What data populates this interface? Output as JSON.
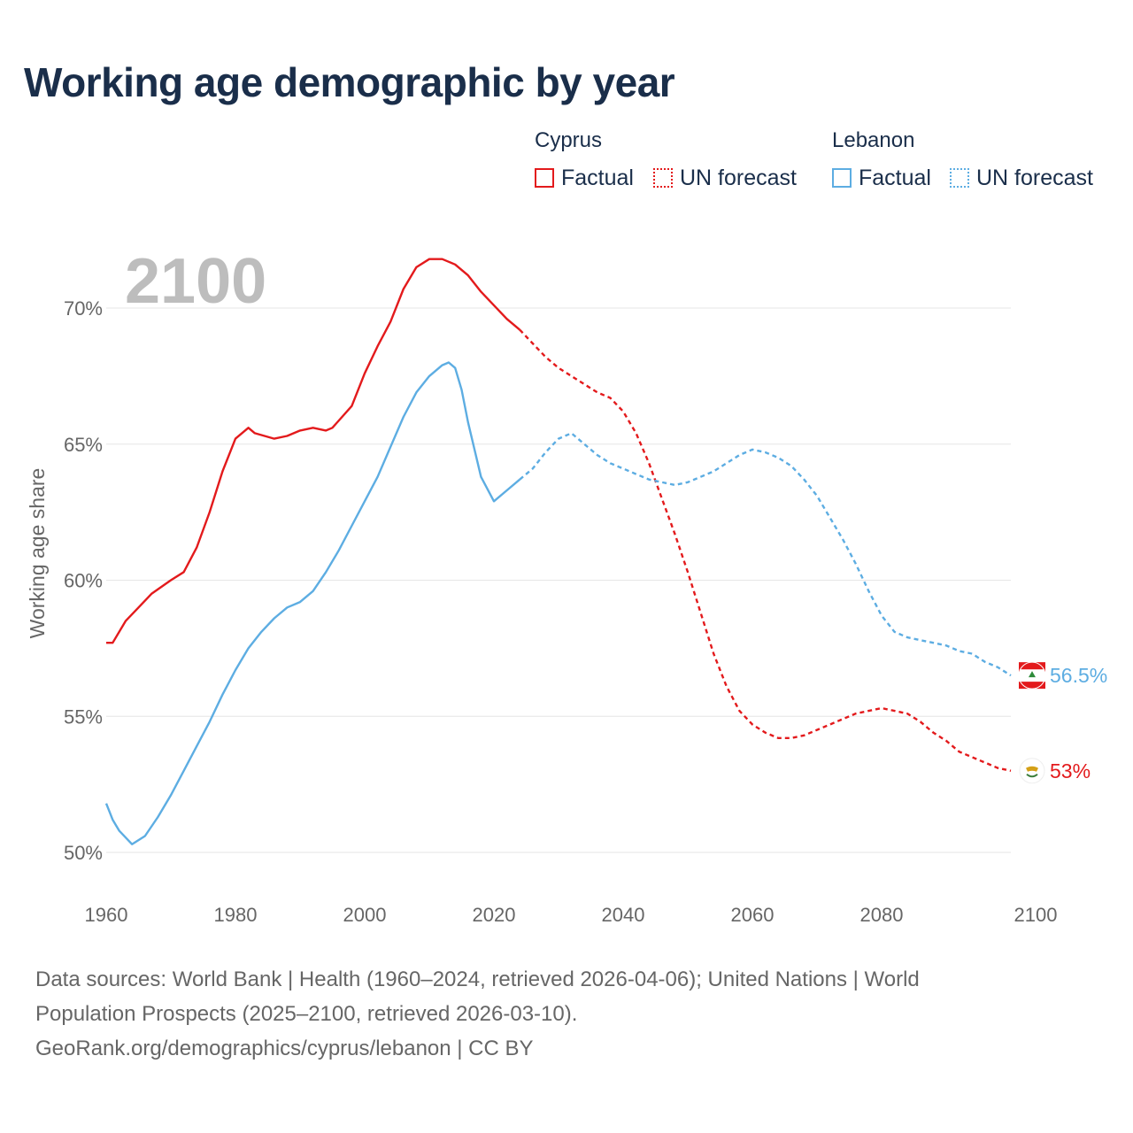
{
  "title": "Working age demographic by year",
  "legend": {
    "groups": [
      {
        "name": "Cyprus",
        "color": "#e31a1c",
        "factual_label": "Factual",
        "forecast_label": "UN forecast"
      },
      {
        "name": "Lebanon",
        "color": "#5dade2",
        "factual_label": "Factual",
        "forecast_label": "UN forecast"
      }
    ]
  },
  "sources": {
    "line1": "Data sources: World Bank | Health (1960–2024, retrieved 2026-04-06); United Nations | World",
    "line2": "Population Prospects (2025–2100, retrieved 2026-03-10).",
    "line3": "GeoRank.org/demographics/cyprus/lebanon | CC BY"
  },
  "chart_data": {
    "type": "line",
    "title": "Working age demographic by year",
    "current_year_label": "2100",
    "xlabel": "",
    "ylabel": "Working age share",
    "xlim": [
      1960,
      2100
    ],
    "ylim": [
      50,
      72
    ],
    "x_ticks": [
      1960,
      1980,
      2000,
      2020,
      2040,
      2060,
      2080,
      2100
    ],
    "y_ticks": [
      50,
      55,
      60,
      65,
      70
    ],
    "y_tick_labels": [
      "50%",
      "55%",
      "60%",
      "65%",
      "70%"
    ],
    "grid": true,
    "legend_position": "top-right",
    "factual_until": 2024,
    "series": [
      {
        "name": "Cyprus",
        "color": "#e31a1c",
        "end_label": "53%",
        "flag": "cyprus",
        "points": [
          [
            1960,
            57.7
          ],
          [
            1961,
            57.7
          ],
          [
            1963,
            58.5
          ],
          [
            1965,
            59.0
          ],
          [
            1967,
            59.5
          ],
          [
            1970,
            60.0
          ],
          [
            1972,
            60.3
          ],
          [
            1974,
            61.2
          ],
          [
            1976,
            62.5
          ],
          [
            1978,
            64.0
          ],
          [
            1980,
            65.2
          ],
          [
            1982,
            65.6
          ],
          [
            1983,
            65.4
          ],
          [
            1986,
            65.2
          ],
          [
            1988,
            65.3
          ],
          [
            1990,
            65.5
          ],
          [
            1992,
            65.6
          ],
          [
            1994,
            65.5
          ],
          [
            1995,
            65.6
          ],
          [
            1998,
            66.4
          ],
          [
            2000,
            67.6
          ],
          [
            2002,
            68.6
          ],
          [
            2004,
            69.5
          ],
          [
            2006,
            70.7
          ],
          [
            2008,
            71.5
          ],
          [
            2010,
            71.8
          ],
          [
            2012,
            71.8
          ],
          [
            2014,
            71.6
          ],
          [
            2016,
            71.2
          ],
          [
            2018,
            70.6
          ],
          [
            2020,
            70.1
          ],
          [
            2022,
            69.6
          ],
          [
            2024,
            69.2
          ],
          [
            2026,
            68.7
          ],
          [
            2028,
            68.2
          ],
          [
            2030,
            67.8
          ],
          [
            2032,
            67.5
          ],
          [
            2034,
            67.2
          ],
          [
            2036,
            66.9
          ],
          [
            2038,
            66.7
          ],
          [
            2040,
            66.2
          ],
          [
            2042,
            65.4
          ],
          [
            2044,
            64.3
          ],
          [
            2046,
            63.0
          ],
          [
            2048,
            61.7
          ],
          [
            2050,
            60.3
          ],
          [
            2052,
            58.8
          ],
          [
            2054,
            57.3
          ],
          [
            2056,
            56.1
          ],
          [
            2058,
            55.2
          ],
          [
            2060,
            54.7
          ],
          [
            2062,
            54.4
          ],
          [
            2064,
            54.2
          ],
          [
            2066,
            54.2
          ],
          [
            2068,
            54.3
          ],
          [
            2070,
            54.5
          ],
          [
            2072,
            54.7
          ],
          [
            2074,
            54.9
          ],
          [
            2076,
            55.1
          ],
          [
            2078,
            55.2
          ],
          [
            2080,
            55.3
          ],
          [
            2082,
            55.2
          ],
          [
            2084,
            55.1
          ],
          [
            2086,
            54.8
          ],
          [
            2088,
            54.4
          ],
          [
            2090,
            54.1
          ],
          [
            2092,
            53.7
          ],
          [
            2094,
            53.5
          ],
          [
            2096,
            53.3
          ],
          [
            2098,
            53.1
          ],
          [
            2100,
            53.0
          ]
        ]
      },
      {
        "name": "Lebanon",
        "color": "#5dade2",
        "end_label": "56.5%",
        "flag": "lebanon",
        "points": [
          [
            1960,
            51.8
          ],
          [
            1961,
            51.2
          ],
          [
            1962,
            50.8
          ],
          [
            1964,
            50.3
          ],
          [
            1966,
            50.6
          ],
          [
            1968,
            51.3
          ],
          [
            1970,
            52.1
          ],
          [
            1972,
            53.0
          ],
          [
            1974,
            53.9
          ],
          [
            1976,
            54.8
          ],
          [
            1978,
            55.8
          ],
          [
            1980,
            56.7
          ],
          [
            1982,
            57.5
          ],
          [
            1984,
            58.1
          ],
          [
            1986,
            58.6
          ],
          [
            1988,
            59.0
          ],
          [
            1990,
            59.2
          ],
          [
            1992,
            59.6
          ],
          [
            1994,
            60.3
          ],
          [
            1996,
            61.1
          ],
          [
            1998,
            62.0
          ],
          [
            2000,
            62.9
          ],
          [
            2002,
            63.8
          ],
          [
            2004,
            64.9
          ],
          [
            2006,
            66.0
          ],
          [
            2008,
            66.9
          ],
          [
            2010,
            67.5
          ],
          [
            2012,
            67.9
          ],
          [
            2013,
            68.0
          ],
          [
            2014,
            67.8
          ],
          [
            2015,
            67.0
          ],
          [
            2016,
            65.8
          ],
          [
            2018,
            63.8
          ],
          [
            2020,
            62.9
          ],
          [
            2022,
            63.3
          ],
          [
            2024,
            63.7
          ],
          [
            2026,
            64.1
          ],
          [
            2028,
            64.7
          ],
          [
            2030,
            65.2
          ],
          [
            2032,
            65.4
          ],
          [
            2034,
            65.0
          ],
          [
            2036,
            64.6
          ],
          [
            2038,
            64.3
          ],
          [
            2040,
            64.1
          ],
          [
            2042,
            63.9
          ],
          [
            2044,
            63.7
          ],
          [
            2046,
            63.6
          ],
          [
            2048,
            63.5
          ],
          [
            2050,
            63.6
          ],
          [
            2052,
            63.8
          ],
          [
            2054,
            64.0
          ],
          [
            2056,
            64.3
          ],
          [
            2058,
            64.6
          ],
          [
            2060,
            64.8
          ],
          [
            2062,
            64.7
          ],
          [
            2064,
            64.5
          ],
          [
            2066,
            64.2
          ],
          [
            2068,
            63.7
          ],
          [
            2070,
            63.1
          ],
          [
            2072,
            62.3
          ],
          [
            2074,
            61.5
          ],
          [
            2076,
            60.6
          ],
          [
            2078,
            59.6
          ],
          [
            2080,
            58.7
          ],
          [
            2082,
            58.1
          ],
          [
            2084,
            57.9
          ],
          [
            2086,
            57.8
          ],
          [
            2088,
            57.7
          ],
          [
            2090,
            57.6
          ],
          [
            2092,
            57.4
          ],
          [
            2094,
            57.3
          ],
          [
            2096,
            57.0
          ],
          [
            2098,
            56.8
          ],
          [
            2100,
            56.5
          ]
        ]
      }
    ]
  }
}
